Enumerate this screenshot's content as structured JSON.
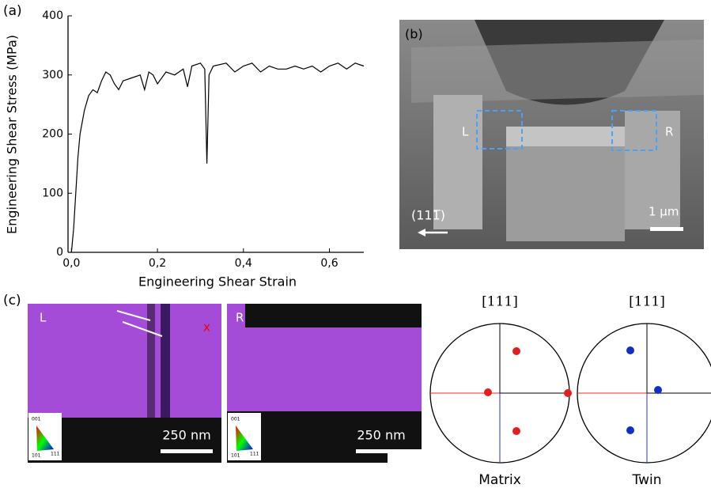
{
  "chart_data": {
    "type": "line",
    "panel_label": "(a)",
    "x_label": "Engineering Shear Strain",
    "y_label": "Engineering Shear Stress (MPa)",
    "x": [
      0,
      0.005,
      0.01,
      0.015,
      0.02,
      0.03,
      0.04,
      0.05,
      0.06,
      0.07,
      0.08,
      0.09,
      0.1,
      0.11,
      0.12,
      0.14,
      0.16,
      0.17,
      0.18,
      0.19,
      0.2,
      0.22,
      0.24,
      0.26,
      0.27,
      0.28,
      0.3,
      0.31,
      0.315,
      0.32,
      0.33,
      0.36,
      0.38,
      0.4,
      0.42,
      0.44,
      0.46,
      0.48,
      0.5,
      0.52,
      0.54,
      0.56,
      0.58,
      0.6,
      0.62,
      0.64,
      0.66,
      0.68
    ],
    "values": [
      0,
      40,
      100,
      160,
      200,
      240,
      265,
      275,
      270,
      290,
      305,
      300,
      285,
      275,
      290,
      295,
      300,
      275,
      305,
      300,
      285,
      305,
      300,
      310,
      280,
      315,
      320,
      310,
      150,
      300,
      315,
      320,
      305,
      315,
      320,
      305,
      315,
      310,
      310,
      315,
      310,
      315,
      305,
      315,
      320,
      310,
      320,
      315
    ],
    "color": "#000000",
    "xlim": [
      -0.008,
      0.68
    ],
    "ylim": [
      0,
      400
    ],
    "xticks": [
      {
        "value": 0,
        "label": "0,0"
      },
      {
        "value": 0.2,
        "label": "0,2"
      },
      {
        "value": 0.4,
        "label": "0,4"
      },
      {
        "value": 0.6,
        "label": "0,6"
      }
    ],
    "yticks": [
      0,
      100,
      200,
      300,
      400
    ]
  },
  "sem": {
    "panel_label": "(b)",
    "left": "L",
    "right": "R",
    "scale": "1 µm",
    "direction": "(111̅)"
  },
  "ebsd": {
    "panel_label": "(c)",
    "left_map": {
      "label": "L",
      "marker": "x",
      "scale": "250 nm"
    },
    "right_map": {
      "label": "R",
      "scale": "250 nm"
    },
    "key": [
      "001",
      "101",
      "111"
    ]
  },
  "pole_figures": {
    "matrix": {
      "header": "[111]",
      "caption": "Matrix"
    },
    "twin": {
      "header": "[111]",
      "caption": "Twin"
    }
  }
}
